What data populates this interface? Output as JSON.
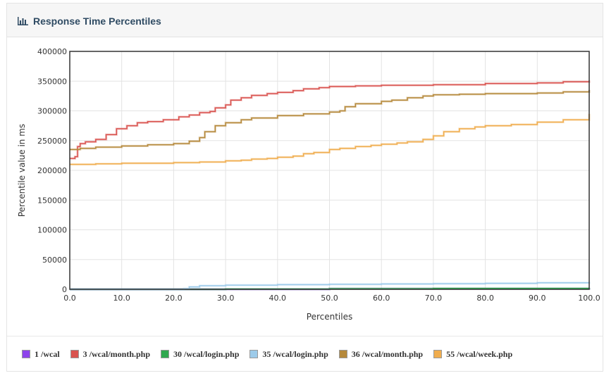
{
  "panel": {
    "title": "Response Time Percentiles",
    "icon": "bar-chart-icon"
  },
  "chart_data": {
    "type": "line",
    "xlabel": "Percentiles",
    "ylabel": "Percentile value in ms",
    "xlim": [
      0,
      100
    ],
    "ylim": [
      0,
      400000
    ],
    "xticks": [
      0,
      10,
      20,
      30,
      40,
      50,
      60,
      70,
      80,
      90,
      100
    ],
    "xtick_labels": [
      "0.0",
      "10.0",
      "20.0",
      "30.0",
      "40.0",
      "50.0",
      "60.0",
      "70.0",
      "80.0",
      "90.0",
      "100.0"
    ],
    "yticks": [
      0,
      50000,
      100000,
      150000,
      200000,
      250000,
      300000,
      350000,
      400000
    ],
    "ytick_labels": [
      "0",
      "50000",
      "100000",
      "150000",
      "200000",
      "250000",
      "300000",
      "350000",
      "400000"
    ],
    "grid": true,
    "legend_position": "bottom",
    "series": [
      {
        "name": "1 /wcal",
        "color": "#8e44ec",
        "x": [
          0,
          50,
          100
        ],
        "y": [
          0,
          1000,
          2000
        ]
      },
      {
        "name": "3 /wcal/month.php",
        "color": "#d9534f",
        "x": [
          0,
          1,
          1.5,
          2,
          3,
          5,
          7,
          9,
          11,
          13,
          15,
          18,
          21,
          23,
          25,
          27,
          28,
          30,
          31,
          33,
          35,
          38,
          40,
          43,
          45,
          48,
          50,
          55,
          60,
          70,
          80,
          90,
          95,
          100
        ],
        "y": [
          220000,
          223000,
          240000,
          245000,
          248000,
          252000,
          260000,
          270000,
          275000,
          280000,
          282000,
          285000,
          290000,
          293000,
          297000,
          299000,
          305000,
          310000,
          318000,
          322000,
          326000,
          329000,
          331000,
          334000,
          337000,
          339000,
          341000,
          342000,
          343000,
          344000,
          346000,
          347000,
          349000,
          351000
        ]
      },
      {
        "name": "30 /wcal/login.php",
        "color": "#2fa84f",
        "x": [
          0,
          30,
          50,
          70,
          100
        ],
        "y": [
          0,
          500,
          1000,
          1500,
          2500
        ]
      },
      {
        "name": "35 /wcal/login.php",
        "color": "#9dcbea",
        "x": [
          0,
          20,
          22,
          23,
          25,
          30,
          40,
          50,
          60,
          70,
          80,
          90,
          100
        ],
        "y": [
          0,
          0,
          1000,
          4000,
          6000,
          7000,
          7800,
          8500,
          9000,
          9500,
          10000,
          11000,
          12500
        ]
      },
      {
        "name": "36 /wcal/month.php",
        "color": "#b5893b",
        "x": [
          0,
          2,
          5,
          10,
          15,
          20,
          23,
          25,
          26,
          28,
          30,
          33,
          35,
          40,
          45,
          50,
          52,
          53,
          55,
          60,
          62,
          65,
          68,
          70,
          75,
          80,
          90,
          95,
          100
        ],
        "y": [
          235000,
          237000,
          239000,
          241000,
          243000,
          245000,
          249000,
          255000,
          265000,
          275000,
          280000,
          285000,
          288000,
          292000,
          295000,
          298000,
          300000,
          307000,
          312000,
          316000,
          318000,
          322000,
          325000,
          327000,
          328000,
          329000,
          330000,
          332000,
          335000
        ]
      },
      {
        "name": "55 /wcal/week.php",
        "color": "#f0ad4e",
        "x": [
          0,
          5,
          10,
          20,
          25,
          30,
          33,
          35,
          38,
          40,
          43,
          45,
          47,
          50,
          52,
          55,
          58,
          60,
          63,
          65,
          68,
          70,
          72,
          75,
          78,
          80,
          85,
          90,
          95,
          100
        ],
        "y": [
          210000,
          211000,
          212000,
          213000,
          214000,
          216000,
          217000,
          219000,
          220000,
          222000,
          224000,
          228000,
          230000,
          235000,
          237000,
          240000,
          242000,
          244000,
          246000,
          248000,
          252000,
          258000,
          265000,
          270000,
          273000,
          275000,
          277000,
          281000,
          285000,
          295000
        ]
      }
    ]
  }
}
